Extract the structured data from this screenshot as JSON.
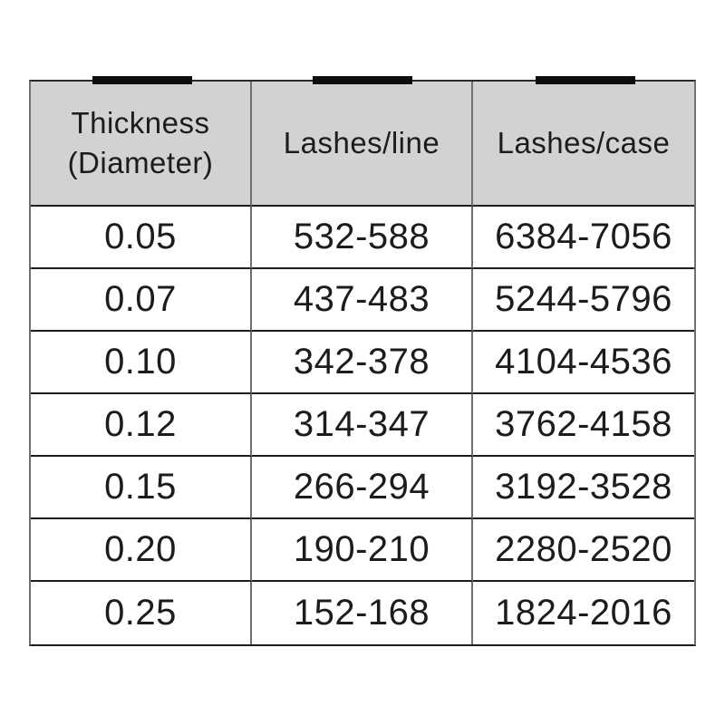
{
  "colors": {
    "header_background": "#d2d2d2",
    "marker_bar": "#0d0d0d",
    "text": "#1c1c1c",
    "horizontal_rule": "#1e1e1e",
    "vertical_rule": "#6f6f6f",
    "page_background": "#ffffff"
  },
  "chart_data": {
    "type": "table",
    "title": "",
    "columns": [
      "Thickness (Diameter)",
      "Lashes/line",
      "Lashes/case"
    ],
    "rows": [
      [
        "0.05",
        "532-588",
        "6384-7056"
      ],
      [
        "0.07",
        "437-483",
        "5244-5796"
      ],
      [
        "0.10",
        "342-378",
        "4104-4536"
      ],
      [
        "0.12",
        "314-347",
        "3762-4158"
      ],
      [
        "0.15",
        "266-294",
        "3192-3528"
      ],
      [
        "0.20",
        "190-210",
        "2280-2520"
      ],
      [
        "0.25",
        "152-168",
        "1824-2016"
      ]
    ]
  }
}
